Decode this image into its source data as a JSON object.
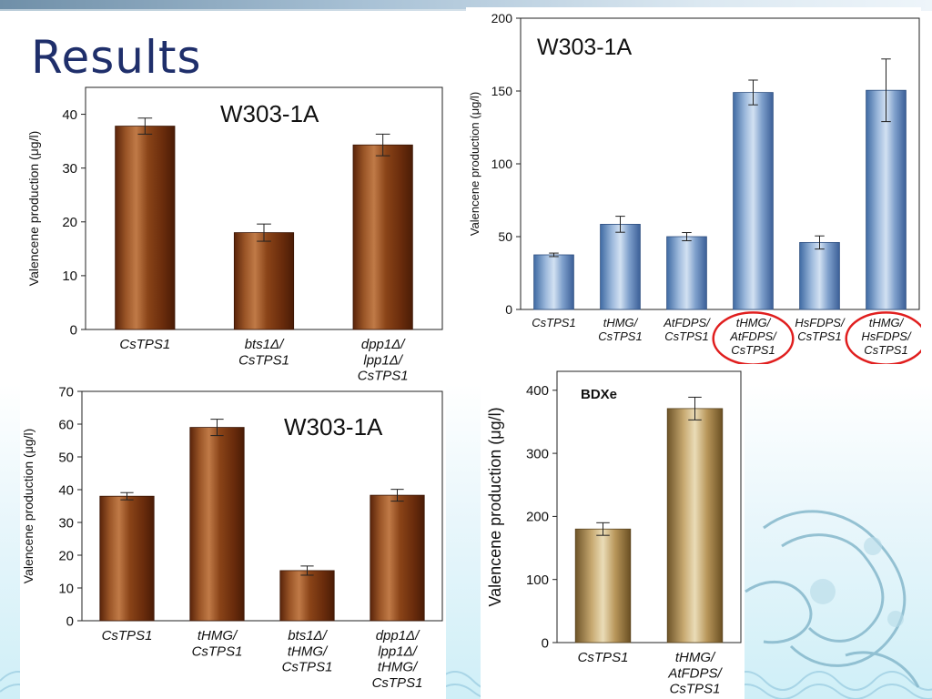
{
  "slide": {
    "title": "Results"
  },
  "colors": {
    "bar_brown": "#7a3a10",
    "bar_blue": "#5a82b6",
    "bar_tan": "#a3844a",
    "highlight": "#e01e1e",
    "title": "#1f2f6b"
  },
  "chart_data": [
    {
      "id": "top-left",
      "type": "bar",
      "title": "W303-1A",
      "ylabel": "Valencene production (μg/l)",
      "xlabel": "",
      "ylim": [
        0,
        45
      ],
      "yticks": [
        0,
        10,
        20,
        30,
        40
      ],
      "grid": false,
      "categories": [
        [
          "CsTPS1"
        ],
        [
          "bts1Δ/",
          "CsTPS1"
        ],
        [
          "dpp1Δ/",
          "lpp1Δ/",
          "CsTPS1"
        ]
      ],
      "values": [
        37.8,
        18.0,
        34.3
      ],
      "errors": [
        1.5,
        1.6,
        2.0
      ],
      "style": "brown"
    },
    {
      "id": "top-right",
      "type": "bar",
      "title": "W303-1A",
      "ylabel": "Valencene production (μg/l)",
      "xlabel": "",
      "ylim": [
        0,
        200
      ],
      "yticks": [
        0,
        50,
        100,
        150,
        200
      ],
      "grid": false,
      "categories": [
        [
          "CsTPS1"
        ],
        [
          "tHMG/",
          "CsTPS1"
        ],
        [
          "AtFDPS/",
          "CsTPS1"
        ],
        [
          "tHMG/",
          "AtFDPS/",
          "CsTPS1"
        ],
        [
          "HsFDPS/",
          "CsTPS1"
        ],
        [
          "tHMG/",
          "HsFDPS/",
          "CsTPS1"
        ]
      ],
      "values": [
        37.5,
        58.5,
        50.0,
        149.0,
        46.0,
        150.5
      ],
      "errors": [
        1.2,
        5.5,
        2.8,
        8.5,
        4.5,
        21.5
      ],
      "highlighted": [
        3,
        5
      ],
      "style": "blue"
    },
    {
      "id": "bottom-left",
      "type": "bar",
      "title": "W303-1A",
      "ylabel": "Valencene production (μg/l)",
      "xlabel": "",
      "ylim": [
        0,
        70
      ],
      "yticks": [
        0,
        10,
        20,
        30,
        40,
        50,
        60,
        70
      ],
      "grid": false,
      "categories": [
        [
          "CsTPS1"
        ],
        [
          "tHMG/",
          "CsTPS1"
        ],
        [
          "bts1Δ/",
          "tHMG/",
          "CsTPS1"
        ],
        [
          "dpp1Δ/",
          "lpp1Δ/",
          "tHMG/",
          "CsTPS1"
        ]
      ],
      "values": [
        38.0,
        59.0,
        15.3,
        38.3
      ],
      "errors": [
        1.1,
        2.5,
        1.4,
        1.8
      ],
      "style": "brown"
    },
    {
      "id": "bottom-right",
      "type": "bar",
      "title": "BDXe",
      "ylabel": "Valencene production (μg/l)",
      "xlabel": "",
      "ylim": [
        0,
        430
      ],
      "yticks": [
        0,
        100,
        200,
        300,
        400
      ],
      "grid": false,
      "categories": [
        [
          "CsTPS1"
        ],
        [
          "tHMG/",
          "AtFDPS/",
          "CsTPS1"
        ]
      ],
      "values": [
        180,
        371
      ],
      "errors": [
        10,
        18
      ],
      "style": "tan"
    }
  ]
}
